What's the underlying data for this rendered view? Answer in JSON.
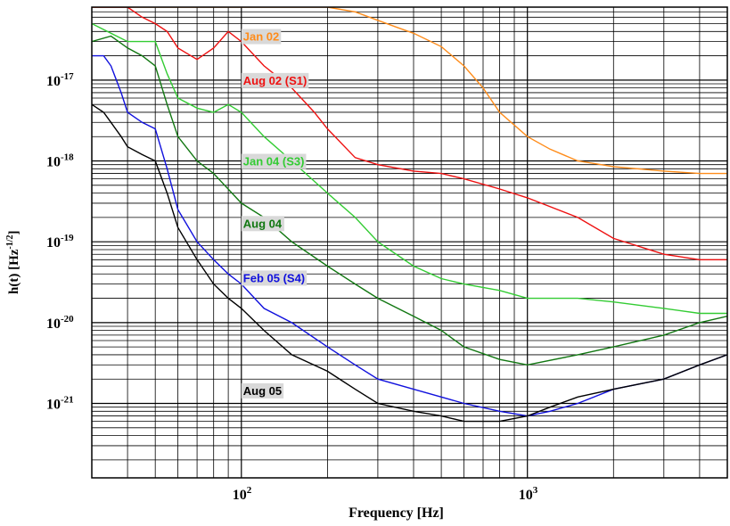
{
  "chart_data": {
    "type": "line",
    "title": "",
    "xlabel": "Frequency [Hz]",
    "ylabel_main": "h(t) [Hz",
    "ylabel_exp": "-1/2",
    "ylabel_close": "]",
    "x_scale": "log",
    "y_scale": "log",
    "xlim": [
      30,
      5000
    ],
    "ylim": [
      1.2e-22,
      8e-17
    ],
    "grid": true,
    "legend": "inline labels",
    "x_ticks": [
      {
        "value": 100,
        "base": "10",
        "exp": "2"
      },
      {
        "value": 1000,
        "base": "10",
        "exp": "3"
      }
    ],
    "y_ticks": [
      {
        "value": 1e-17,
        "base": "10",
        "exp": "-17"
      },
      {
        "value": 1e-18,
        "base": "10",
        "exp": "-18"
      },
      {
        "value": 1e-19,
        "base": "10",
        "exp": "-19"
      },
      {
        "value": 1e-20,
        "base": "10",
        "exp": "-20"
      },
      {
        "value": 1e-21,
        "base": "10",
        "exp": "-21"
      }
    ],
    "series": [
      {
        "name": "Jan 02",
        "color": "#ff8c1a",
        "label_bg": "#d9d9d9",
        "label_x": 100,
        "label_y": 3.5e-17,
        "x": [
          30,
          40,
          50,
          60,
          80,
          100,
          130,
          160,
          200,
          250,
          300,
          350,
          400,
          500,
          600,
          700,
          800,
          1000,
          1200,
          1500,
          2000,
          3000,
          4000,
          5000
        ],
        "y": [
          8e-17,
          8e-17,
          8e-17,
          8e-17,
          8e-17,
          8e-17,
          8e-17,
          8e-17,
          8e-17,
          7e-17,
          5.5e-17,
          4.5e-17,
          3.8e-17,
          2.6e-17,
          1.5e-17,
          8e-18,
          4e-18,
          2e-18,
          1.4e-18,
          1e-18,
          8.5e-19,
          7.5e-19,
          7e-19,
          7e-19
        ]
      },
      {
        "name": "Aug 02 (S1)",
        "color": "#ee1111",
        "label_bg": "#d9d9d9",
        "label_x": 100,
        "label_y": 1e-17,
        "x": [
          30,
          40,
          45,
          50,
          55,
          60,
          70,
          80,
          90,
          100,
          120,
          150,
          180,
          200,
          250,
          300,
          400,
          500,
          600,
          800,
          1000,
          1500,
          2000,
          3000,
          4000,
          5000
        ],
        "y": [
          8e-17,
          8e-17,
          6e-17,
          5e-17,
          4e-17,
          2.5e-17,
          1.8e-17,
          2.5e-17,
          4e-17,
          3e-17,
          1.5e-17,
          8e-18,
          4e-18,
          2.5e-18,
          1.1e-18,
          9e-19,
          7.5e-19,
          7e-19,
          6e-19,
          4.5e-19,
          3.5e-19,
          2e-19,
          1.1e-19,
          7e-20,
          6e-20,
          6e-20
        ]
      },
      {
        "name": "Jan 04 (S3)",
        "color": "#33cc33",
        "label_bg": "#d9d9d9",
        "label_x": 100,
        "label_y": 1e-18,
        "x": [
          30,
          40,
          50,
          55,
          60,
          70,
          80,
          90,
          100,
          120,
          150,
          200,
          250,
          300,
          400,
          500,
          600,
          800,
          1000,
          1500,
          2000,
          3000,
          4000,
          5000
        ],
        "y": [
          5e-17,
          3e-17,
          3e-17,
          1.2e-17,
          6e-18,
          4.5e-18,
          4e-18,
          5e-18,
          4e-18,
          2e-18,
          1e-18,
          4e-19,
          2e-19,
          1e-19,
          5e-20,
          3.5e-20,
          3e-20,
          2.5e-20,
          2e-20,
          2e-20,
          1.8e-20,
          1.5e-20,
          1.3e-20,
          1.3e-20
        ]
      },
      {
        "name": "Aug 04",
        "color": "#117711",
        "label_bg": "#d9d9d9",
        "label_x": 100,
        "label_y": 1.7e-19,
        "x": [
          30,
          35,
          40,
          45,
          50,
          55,
          60,
          70,
          80,
          100,
          120,
          150,
          200,
          250,
          300,
          400,
          500,
          600,
          800,
          1000,
          1500,
          2000,
          3000,
          4000,
          5000
        ],
        "y": [
          3e-17,
          3.5e-17,
          2.5e-17,
          2e-17,
          1.5e-17,
          5e-18,
          2e-18,
          1e-18,
          7e-19,
          3e-19,
          2e-19,
          1e-19,
          5e-20,
          3e-20,
          2e-20,
          1.2e-20,
          8e-21,
          5e-21,
          3.5e-21,
          3e-21,
          4e-21,
          5e-21,
          7e-21,
          1e-20,
          1.2e-20
        ]
      },
      {
        "name": "Feb 05 (S4)",
        "color": "#1111dd",
        "label_bg": "#d9d9d9",
        "label_x": 100,
        "label_y": 3.6e-20,
        "x": [
          30,
          33,
          35,
          38,
          40,
          45,
          50,
          55,
          60,
          70,
          80,
          90,
          100,
          120,
          150,
          200,
          250,
          300,
          400,
          500,
          600,
          800,
          1000,
          1200,
          1500,
          2000,
          3000,
          4000,
          5000
        ],
        "y": [
          2e-17,
          2e-17,
          1.5e-17,
          7e-18,
          4e-18,
          3e-18,
          2.5e-18,
          8e-19,
          2.5e-19,
          1e-19,
          6e-20,
          4e-20,
          3e-20,
          1.5e-20,
          1e-20,
          5e-21,
          3e-21,
          2e-21,
          1.5e-21,
          1.2e-21,
          1e-21,
          8e-22,
          7e-22,
          8e-22,
          1e-21,
          1.5e-21,
          2e-21,
          3e-21,
          4e-21
        ]
      },
      {
        "name": "Aug 05",
        "color": "#000000",
        "label_bg": "#d9d9d9",
        "label_x": 100,
        "label_y": 1.45e-21,
        "x": [
          30,
          33,
          35,
          38,
          40,
          45,
          50,
          55,
          60,
          70,
          80,
          90,
          100,
          120,
          150,
          200,
          250,
          300,
          400,
          500,
          600,
          800,
          1000,
          1200,
          1500,
          2000,
          3000,
          4000,
          5000
        ],
        "y": [
          5e-18,
          4e-18,
          3e-18,
          2e-18,
          1.5e-18,
          1.2e-18,
          1e-18,
          4e-19,
          1.5e-19,
          6e-20,
          3e-20,
          2e-20,
          1.5e-20,
          8e-21,
          4e-21,
          2.5e-21,
          1.5e-21,
          1e-21,
          8e-22,
          7e-22,
          6e-22,
          6e-22,
          7e-22,
          9e-22,
          1.2e-21,
          1.5e-21,
          2e-21,
          3e-21,
          4e-21
        ]
      }
    ]
  }
}
